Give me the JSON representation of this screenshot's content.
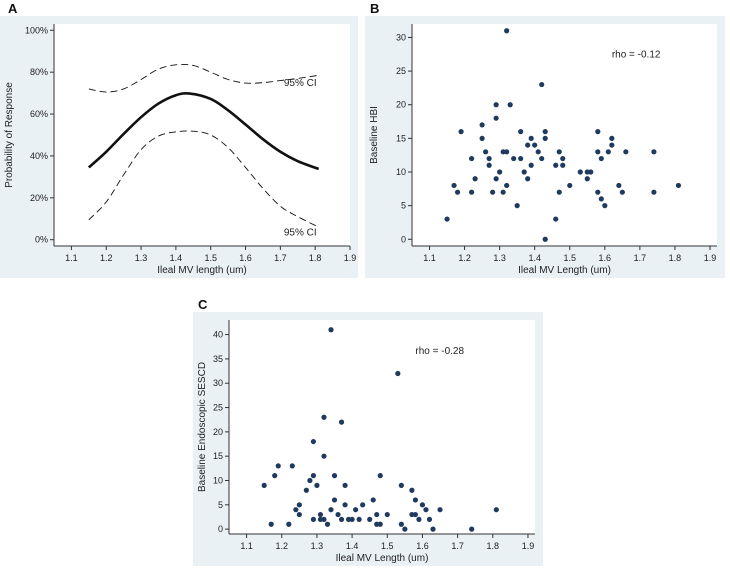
{
  "panels": {
    "a": {
      "letter": "A",
      "chart_data": {
        "type": "line",
        "title": "",
        "xlabel": "Ileal MV length (um)",
        "ylabel": "Probability of Response",
        "xlim": [
          1.05,
          1.9
        ],
        "ylim": [
          -0.03,
          1.03
        ],
        "xticks": [
          1.1,
          1.2,
          1.3,
          1.4,
          1.5,
          1.6,
          1.7,
          1.8,
          1.9
        ],
        "xtick_labels": [
          "1.1",
          "1.2",
          "1.3",
          "1.4",
          "1.5",
          "1.6",
          "1.7",
          "1.8",
          "1.9"
        ],
        "yticks": [
          0,
          0.2,
          0.4,
          0.6,
          0.8,
          1.0
        ],
        "ytick_labels": [
          "0%",
          "20%",
          "40%",
          "60%",
          "80%",
          "100%"
        ],
        "series": [
          {
            "name": "Fitted probability",
            "style": "solid-bold",
            "x": [
              1.15,
              1.2,
              1.25,
              1.3,
              1.35,
              1.4,
              1.44,
              1.5,
              1.55,
              1.6,
              1.65,
              1.7,
              1.75,
              1.81
            ],
            "y": [
              0.345,
              0.42,
              0.505,
              0.585,
              0.65,
              0.69,
              0.698,
              0.672,
              0.618,
              0.55,
              0.48,
              0.42,
              0.375,
              0.338
            ]
          },
          {
            "name": "Upper 95% CI",
            "style": "dashed",
            "x": [
              1.15,
              1.2,
              1.25,
              1.3,
              1.35,
              1.4,
              1.45,
              1.5,
              1.55,
              1.6,
              1.65,
              1.7,
              1.75,
              1.81
            ],
            "y": [
              0.72,
              0.705,
              0.72,
              0.765,
              0.815,
              0.835,
              0.832,
              0.8,
              0.765,
              0.748,
              0.75,
              0.76,
              0.77,
              0.785
            ]
          },
          {
            "name": "Lower 95% CI",
            "style": "dashed",
            "x": [
              1.15,
              1.2,
              1.25,
              1.3,
              1.35,
              1.4,
              1.45,
              1.5,
              1.55,
              1.6,
              1.65,
              1.7,
              1.75,
              1.81
            ],
            "y": [
              0.095,
              0.18,
              0.31,
              0.43,
              0.495,
              0.515,
              0.518,
              0.5,
              0.44,
              0.345,
              0.245,
              0.16,
              0.11,
              0.06
            ]
          }
        ],
        "annotations": [
          {
            "text": "95% CI",
            "x": 1.71,
            "y": 0.735
          },
          {
            "text": "95% CI",
            "x": 1.71,
            "y": 0.02
          }
        ]
      }
    },
    "b": {
      "letter": "B",
      "chart_data": {
        "type": "scatter",
        "title": "",
        "xlabel": "Ileal MV Length (um)",
        "ylabel": "Baseline HBI",
        "xlim": [
          1.05,
          1.92
        ],
        "ylim": [
          -1,
          32
        ],
        "xticks": [
          1.1,
          1.2,
          1.3,
          1.4,
          1.5,
          1.6,
          1.7,
          1.8,
          1.9
        ],
        "xtick_labels": [
          "1.1",
          "1.2",
          "1.3",
          "1.4",
          "1.5",
          "1.6",
          "1.7",
          "1.8",
          "1.9"
        ],
        "yticks": [
          0,
          5,
          10,
          15,
          20,
          25,
          30
        ],
        "ytick_labels": [
          "0",
          "5",
          "10",
          "15",
          "20",
          "25",
          "30"
        ],
        "points": [
          [
            1.15,
            3
          ],
          [
            1.17,
            8
          ],
          [
            1.18,
            7
          ],
          [
            1.19,
            16
          ],
          [
            1.22,
            12
          ],
          [
            1.22,
            7
          ],
          [
            1.23,
            9
          ],
          [
            1.25,
            17
          ],
          [
            1.25,
            15
          ],
          [
            1.26,
            13
          ],
          [
            1.27,
            11
          ],
          [
            1.27,
            12
          ],
          [
            1.28,
            7
          ],
          [
            1.29,
            18
          ],
          [
            1.29,
            20
          ],
          [
            1.29,
            9
          ],
          [
            1.3,
            10
          ],
          [
            1.31,
            13
          ],
          [
            1.31,
            7
          ],
          [
            1.32,
            13
          ],
          [
            1.32,
            31
          ],
          [
            1.32,
            8
          ],
          [
            1.33,
            20
          ],
          [
            1.34,
            12
          ],
          [
            1.35,
            5
          ],
          [
            1.36,
            12
          ],
          [
            1.36,
            16
          ],
          [
            1.37,
            10
          ],
          [
            1.38,
            9
          ],
          [
            1.38,
            14
          ],
          [
            1.39,
            15
          ],
          [
            1.39,
            11
          ],
          [
            1.4,
            14
          ],
          [
            1.41,
            13
          ],
          [
            1.42,
            12
          ],
          [
            1.42,
            23
          ],
          [
            1.43,
            16
          ],
          [
            1.43,
            15
          ],
          [
            1.43,
            0
          ],
          [
            1.46,
            3
          ],
          [
            1.46,
            11
          ],
          [
            1.47,
            7
          ],
          [
            1.47,
            13
          ],
          [
            1.48,
            12
          ],
          [
            1.48,
            11
          ],
          [
            1.5,
            8
          ],
          [
            1.53,
            10
          ],
          [
            1.55,
            9
          ],
          [
            1.55,
            10
          ],
          [
            1.56,
            10
          ],
          [
            1.58,
            16
          ],
          [
            1.58,
            13
          ],
          [
            1.58,
            7
          ],
          [
            1.59,
            12
          ],
          [
            1.59,
            6
          ],
          [
            1.6,
            5
          ],
          [
            1.61,
            13
          ],
          [
            1.62,
            14
          ],
          [
            1.62,
            15
          ],
          [
            1.64,
            8
          ],
          [
            1.65,
            7
          ],
          [
            1.66,
            13
          ],
          [
            1.74,
            13
          ],
          [
            1.74,
            7
          ],
          [
            1.81,
            8
          ]
        ],
        "annotations": [
          {
            "text": "rho = -0.12"
          }
        ]
      }
    },
    "c": {
      "letter": "C",
      "chart_data": {
        "type": "scatter",
        "title": "",
        "xlabel": "Ileal MV Length (um)",
        "ylabel": "Baseline Endoscopic SESCD",
        "xlim": [
          1.05,
          1.92
        ],
        "ylim": [
          -1,
          43
        ],
        "xticks": [
          1.1,
          1.2,
          1.3,
          1.4,
          1.5,
          1.6,
          1.7,
          1.8,
          1.9
        ],
        "xtick_labels": [
          "1.1",
          "1.2",
          "1.3",
          "1.4",
          "1.5",
          "1.6",
          "1.7",
          "1.8",
          "1.9"
        ],
        "yticks": [
          0,
          5,
          10,
          15,
          20,
          25,
          30,
          35,
          40
        ],
        "ytick_labels": [
          "0",
          "5",
          "10",
          "15",
          "20",
          "25",
          "30",
          "35",
          "40"
        ],
        "points": [
          [
            1.15,
            9
          ],
          [
            1.17,
            1
          ],
          [
            1.18,
            11
          ],
          [
            1.19,
            13
          ],
          [
            1.22,
            1
          ],
          [
            1.23,
            13
          ],
          [
            1.24,
            4
          ],
          [
            1.25,
            3
          ],
          [
            1.25,
            5
          ],
          [
            1.27,
            8
          ],
          [
            1.28,
            10
          ],
          [
            1.29,
            2
          ],
          [
            1.29,
            18
          ],
          [
            1.29,
            11
          ],
          [
            1.3,
            9
          ],
          [
            1.31,
            3
          ],
          [
            1.31,
            2
          ],
          [
            1.32,
            23
          ],
          [
            1.32,
            15
          ],
          [
            1.32,
            2
          ],
          [
            1.33,
            1
          ],
          [
            1.34,
            41
          ],
          [
            1.34,
            4
          ],
          [
            1.35,
            11
          ],
          [
            1.35,
            6
          ],
          [
            1.36,
            3
          ],
          [
            1.37,
            2
          ],
          [
            1.37,
            22
          ],
          [
            1.38,
            9
          ],
          [
            1.38,
            5
          ],
          [
            1.39,
            2
          ],
          [
            1.4,
            2
          ],
          [
            1.41,
            4
          ],
          [
            1.42,
            2
          ],
          [
            1.43,
            5
          ],
          [
            1.45,
            2
          ],
          [
            1.46,
            6
          ],
          [
            1.47,
            3
          ],
          [
            1.47,
            1
          ],
          [
            1.48,
            11
          ],
          [
            1.48,
            1
          ],
          [
            1.5,
            3
          ],
          [
            1.53,
            32
          ],
          [
            1.54,
            1
          ],
          [
            1.54,
            9
          ],
          [
            1.55,
            0
          ],
          [
            1.57,
            3
          ],
          [
            1.57,
            8
          ],
          [
            1.58,
            6
          ],
          [
            1.58,
            3
          ],
          [
            1.59,
            2
          ],
          [
            1.6,
            5
          ],
          [
            1.61,
            4
          ],
          [
            1.62,
            2
          ],
          [
            1.63,
            0
          ],
          [
            1.65,
            4
          ],
          [
            1.74,
            0
          ],
          [
            1.81,
            4
          ]
        ],
        "annotations": [
          {
            "text": "rho = -0.28"
          }
        ]
      }
    }
  },
  "colors": {
    "outer_bg": "#e9f1f5",
    "plot_bg": "#ffffff",
    "axis": "#333333",
    "point": "#1f3a5f",
    "line": "#111111"
  }
}
